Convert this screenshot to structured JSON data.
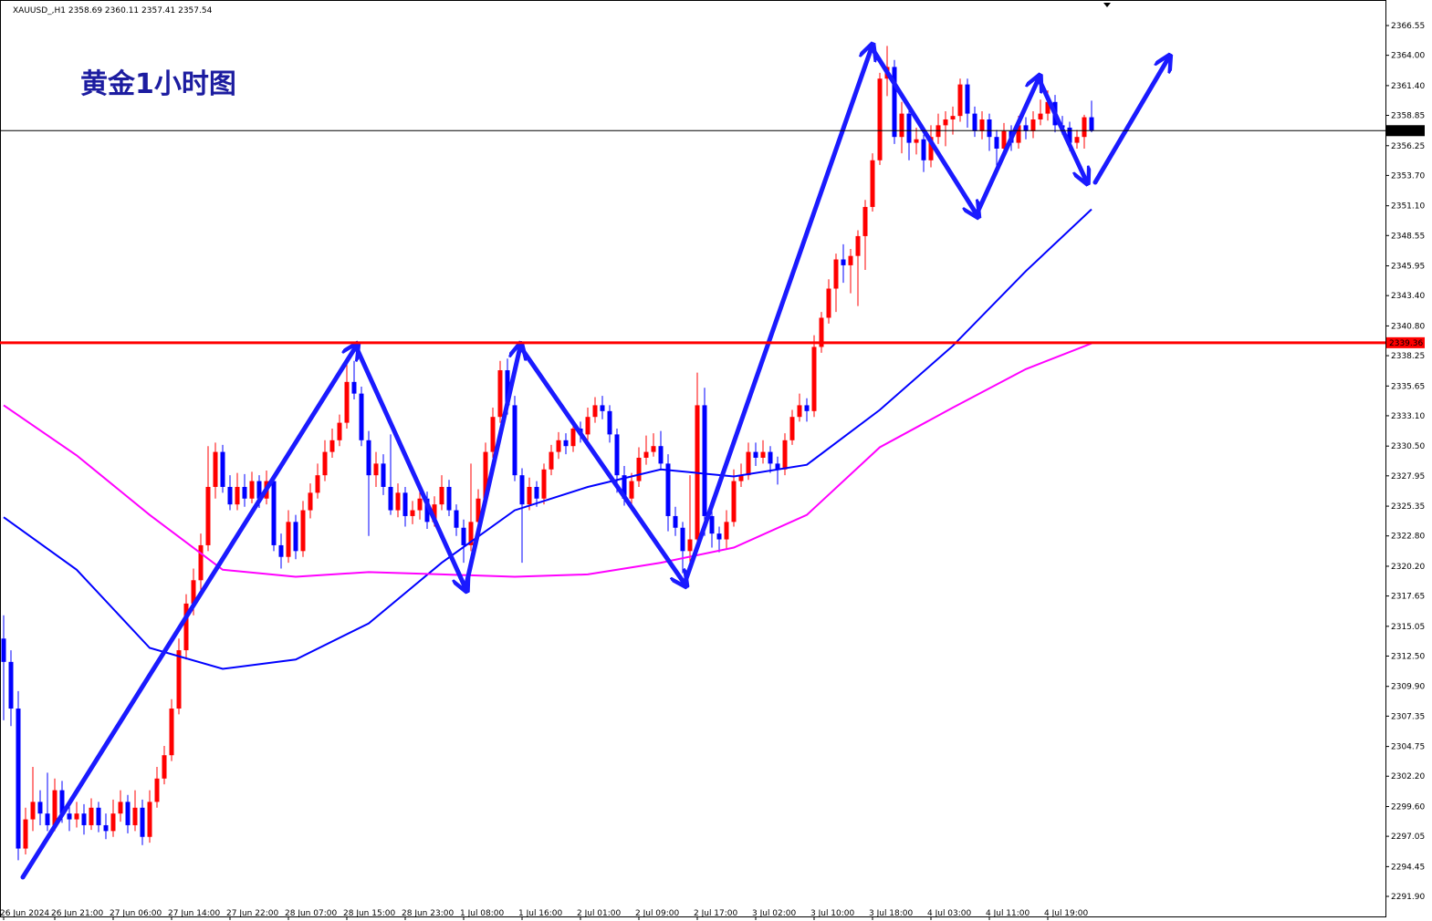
{
  "chart_data": {
    "type": "candlestick",
    "header": "XAUUSD_,H1  2358.69 2360.11 2357.41 2357.54",
    "title": "黄金1小时图",
    "up_color": "#ff0000",
    "down_color": "#0000ff",
    "xlim": [
      -0.5,
      189.25
    ],
    "ylim": [
      2290.18,
      2368.74
    ],
    "xticks": [
      {
        "value": 0,
        "label": "26 Jun 2024"
      },
      {
        "value": 7,
        "label": "26 Jun 21:00"
      },
      {
        "value": 15,
        "label": "27 Jun 06:00"
      },
      {
        "value": 23,
        "label": "27 Jun 14:00"
      },
      {
        "value": 31,
        "label": "27 Jun 22:00"
      },
      {
        "value": 39,
        "label": "28 Jun 07:00"
      },
      {
        "value": 47,
        "label": "28 Jun 15:00"
      },
      {
        "value": 55,
        "label": "28 Jun 23:00"
      },
      {
        "value": 63,
        "label": "1 Jul 08:00"
      },
      {
        "value": 71,
        "label": "1 Jul 16:00"
      },
      {
        "value": 79,
        "label": "2 Jul 01:00"
      },
      {
        "value": 87,
        "label": "2 Jul 09:00"
      },
      {
        "value": 95,
        "label": "2 Jul 17:00"
      },
      {
        "value": 103,
        "label": "3 Jul 02:00"
      },
      {
        "value": 111,
        "label": "3 Jul 10:00"
      },
      {
        "value": 119,
        "label": "3 Jul 18:00"
      },
      {
        "value": 127,
        "label": "4 Jul 03:00"
      },
      {
        "value": 135,
        "label": "4 Jul 11:00"
      },
      {
        "value": 143,
        "label": "4 Jul 19:00"
      }
    ],
    "yticks": [
      2366.55,
      {
        "value": 2364,
        "label": "2364.00"
      },
      {
        "value": 2361.4,
        "label": "2361.40"
      },
      2358.85,
      2356.25,
      {
        "value": 2353.7,
        "label": "2353.70"
      },
      {
        "value": 2351.1,
        "label": "2351.10"
      },
      2348.55,
      2345.95,
      {
        "value": 2343.4,
        "label": "2343.40"
      },
      {
        "value": 2340.8,
        "label": "2340.80"
      },
      2338.25,
      2335.65,
      {
        "value": 2333.1,
        "label": "2333.10"
      },
      {
        "value": 2330.5,
        "label": "2330.50"
      },
      2327.95,
      2325.35,
      {
        "value": 2322.8,
        "label": "2322.80"
      },
      {
        "value": 2320.2,
        "label": "2320.20"
      },
      2317.65,
      2315.05,
      {
        "value": 2312.5,
        "label": "2312.50"
      },
      {
        "value": 2309.9,
        "label": "2309.90"
      },
      2307.35,
      2304.75,
      {
        "value": 2302.2,
        "label": "2302.20"
      },
      {
        "value": 2299.6,
        "label": "2299.60"
      },
      2297.05,
      2294.45,
      {
        "value": 2291.9,
        "label": "2291.90"
      }
    ],
    "price_lines": [
      {
        "value": 2357.54,
        "color": "#000000"
      },
      {
        "value": 2339.36,
        "color": "#ff0000"
      }
    ],
    "candles": [
      [
        2314,
        2316,
        2307,
        2312
      ],
      [
        2312,
        2313,
        2306.5,
        2308
      ],
      [
        2308,
        2309.5,
        2295,
        2296
      ],
      [
        2296,
        2299.5,
        2295.5,
        2298.5
      ],
      [
        2298.5,
        2303,
        2297.5,
        2300
      ],
      [
        2300,
        2301,
        2298,
        2299
      ],
      [
        2299,
        2302.5,
        2297.5,
        2298
      ],
      [
        2298,
        2302,
        2297.5,
        2301
      ],
      [
        2301,
        2301.8,
        2298.2,
        2299
      ],
      [
        2299,
        2300,
        2297.5,
        2298.5
      ],
      [
        2298.5,
        2300,
        2297.8,
        2299
      ],
      [
        2299,
        2299.8,
        2297.2,
        2298
      ],
      [
        2298,
        2300.3,
        2297.6,
        2299.5
      ],
      [
        2299.5,
        2300,
        2297.4,
        2298
      ],
      [
        2298,
        2299,
        2296.8,
        2297.5
      ],
      [
        2297.5,
        2300.2,
        2297,
        2299
      ],
      [
        2299,
        2301,
        2298.3,
        2300
      ],
      [
        2300,
        2300.6,
        2297.3,
        2298
      ],
      [
        2298,
        2301,
        2297.5,
        2299.5
      ],
      [
        2299.5,
        2300.2,
        2296.3,
        2297
      ],
      [
        2297,
        2301,
        2296.5,
        2300
      ],
      [
        2300,
        2303,
        2299.5,
        2302
      ],
      [
        2302,
        2304.8,
        2301.5,
        2304
      ],
      [
        2304,
        2308.8,
        2303.5,
        2308
      ],
      [
        2308,
        2314,
        2307.5,
        2313
      ],
      [
        2313,
        2317.8,
        2312.2,
        2317
      ],
      [
        2317,
        2320,
        2316,
        2319
      ],
      [
        2319,
        2323,
        2318,
        2322
      ],
      [
        2322,
        2330.5,
        2321.5,
        2327
      ],
      [
        2327,
        2330.8,
        2326,
        2330
      ],
      [
        2330,
        2330.6,
        2326.5,
        2327
      ],
      [
        2327,
        2328,
        2325,
        2325.5
      ],
      [
        2325.5,
        2328.2,
        2325,
        2327
      ],
      [
        2327,
        2328.1,
        2325.3,
        2326
      ],
      [
        2326,
        2328.3,
        2325.6,
        2327.5
      ],
      [
        2327.5,
        2328,
        2325.2,
        2326
      ],
      [
        2326,
        2328.4,
        2325.5,
        2327.5
      ],
      [
        2327.5,
        2328,
        2321.5,
        2322
      ],
      [
        2322,
        2323,
        2320,
        2321
      ],
      [
        2321,
        2325,
        2320.5,
        2324
      ],
      [
        2324,
        2324.6,
        2320.8,
        2321.5
      ],
      [
        2321.5,
        2325.8,
        2321,
        2325
      ],
      [
        2325,
        2327.3,
        2324.3,
        2326.5
      ],
      [
        2326.5,
        2329,
        2326,
        2328
      ],
      [
        2328,
        2331,
        2327.5,
        2330
      ],
      [
        2330,
        2332,
        2329.5,
        2331
      ],
      [
        2331,
        2333.2,
        2330.5,
        2332.5
      ],
      [
        2332.5,
        2337.5,
        2332,
        2336
      ],
      [
        2336,
        2337.8,
        2334.5,
        2335
      ],
      [
        2335,
        2335.6,
        2330.5,
        2331
      ],
      [
        2331,
        2331.8,
        2322.8,
        2328
      ],
      [
        2328,
        2330,
        2327,
        2329
      ],
      [
        2329,
        2329.8,
        2326.3,
        2327
      ],
      [
        2327,
        2331.5,
        2324.6,
        2325
      ],
      [
        2325,
        2327.3,
        2324.4,
        2326.5
      ],
      [
        2326.5,
        2327,
        2323.6,
        2324.5
      ],
      [
        2324.5,
        2325.8,
        2323.8,
        2325
      ],
      [
        2325,
        2326.7,
        2324.2,
        2326
      ],
      [
        2326,
        2326.6,
        2323.4,
        2324
      ],
      [
        2324,
        2326.2,
        2323.6,
        2325.5
      ],
      [
        2325.5,
        2328,
        2325,
        2327
      ],
      [
        2327,
        2327.6,
        2324.5,
        2325
      ],
      [
        2325,
        2325.5,
        2322.8,
        2323.5
      ],
      [
        2323.5,
        2324.2,
        2320.5,
        2322
      ],
      [
        2322,
        2329,
        2321.5,
        2324
      ],
      [
        2324,
        2326.8,
        2323.5,
        2326
      ],
      [
        2326,
        2330.8,
        2325.5,
        2330
      ],
      [
        2330,
        2333.8,
        2329.5,
        2333
      ],
      [
        2333,
        2337.8,
        2332.5,
        2337
      ],
      [
        2337,
        2338,
        2333.2,
        2334
      ],
      [
        2334,
        2334.8,
        2327.5,
        2328
      ],
      [
        2328,
        2328.6,
        2320.5,
        2325.5
      ],
      [
        2325.5,
        2327.8,
        2325,
        2327
      ],
      [
        2327,
        2327.5,
        2325.3,
        2326
      ],
      [
        2326,
        2329,
        2325.5,
        2328.5
      ],
      [
        2328.5,
        2330.6,
        2328,
        2330
      ],
      [
        2330,
        2331.7,
        2329.4,
        2331
      ],
      [
        2331,
        2331.6,
        2329.8,
        2330.5
      ],
      [
        2330.5,
        2332.8,
        2330,
        2332
      ],
      [
        2332,
        2332.6,
        2330.8,
        2331.5
      ],
      [
        2331.5,
        2333.8,
        2331,
        2333
      ],
      [
        2333,
        2334.7,
        2332.5,
        2334
      ],
      [
        2334,
        2334.8,
        2332.8,
        2333.5
      ],
      [
        2333.5,
        2334,
        2330.8,
        2331.5
      ],
      [
        2331.5,
        2332,
        2326.5,
        2328
      ],
      [
        2328,
        2328.8,
        2325.4,
        2326
      ],
      [
        2326,
        2328.2,
        2325.4,
        2327.5
      ],
      [
        2327.5,
        2330.4,
        2327,
        2329.5
      ],
      [
        2329.5,
        2331.4,
        2328.9,
        2330
      ],
      [
        2330,
        2331.6,
        2329.6,
        2330.5
      ],
      [
        2330.5,
        2331.8,
        2328.4,
        2329
      ],
      [
        2329,
        2329.8,
        2323.2,
        2324.5
      ],
      [
        2324.5,
        2325.3,
        2322.8,
        2323.5
      ],
      [
        2323.5,
        2324,
        2319.6,
        2321.5
      ],
      [
        2321.5,
        2328,
        2320,
        2322.5
      ],
      [
        2322.5,
        2336.8,
        2322,
        2334
      ],
      [
        2334,
        2335.5,
        2322.8,
        2324.5
      ],
      [
        2324.5,
        2325.2,
        2321.8,
        2323
      ],
      [
        2323,
        2323.6,
        2321.4,
        2322.5
      ],
      [
        2322.5,
        2325,
        2321.6,
        2324
      ],
      [
        2324,
        2328.5,
        2323.6,
        2327.5
      ],
      [
        2327.5,
        2329,
        2327,
        2328
      ],
      [
        2328,
        2330.8,
        2327.6,
        2330
      ],
      [
        2330,
        2330.8,
        2328.8,
        2329.5
      ],
      [
        2329.5,
        2331,
        2329,
        2330
      ],
      [
        2330,
        2330.5,
        2328.2,
        2329
      ],
      [
        2329,
        2329.6,
        2327.2,
        2328.5
      ],
      [
        2328.5,
        2331.6,
        2328,
        2331
      ],
      [
        2331,
        2333.6,
        2330.6,
        2333
      ],
      [
        2333,
        2335,
        2332.6,
        2334
      ],
      [
        2334,
        2334.6,
        2332.6,
        2333.5
      ],
      [
        2333.5,
        2340,
        2333,
        2339
      ],
      [
        2339,
        2342,
        2338.5,
        2341.5
      ],
      [
        2341.5,
        2344.8,
        2341,
        2344
      ],
      [
        2344,
        2347,
        2342,
        2346.5
      ],
      [
        2346.5,
        2347.8,
        2344.5,
        2346
      ],
      [
        2346,
        2347.4,
        2343.6,
        2346.8
      ],
      [
        2346.8,
        2349,
        2342.5,
        2348.5
      ],
      [
        2348.5,
        2351.6,
        2345.6,
        2351
      ],
      [
        2351,
        2355.6,
        2350.6,
        2355
      ],
      [
        2355,
        2362.5,
        2354.6,
        2362
      ],
      [
        2362,
        2364.8,
        2360.5,
        2363
      ],
      [
        2363,
        2363.6,
        2356.4,
        2357
      ],
      [
        2357,
        2360,
        2355.6,
        2359
      ],
      [
        2359,
        2359.6,
        2355,
        2356.5
      ],
      [
        2356.5,
        2357.8,
        2355.5,
        2356.8
      ],
      [
        2356.8,
        2357.2,
        2354,
        2355
      ],
      [
        2355,
        2358,
        2354.4,
        2357
      ],
      [
        2357,
        2359,
        2356.4,
        2358
      ],
      [
        2358,
        2359.2,
        2356.2,
        2358.5
      ],
      [
        2358.5,
        2359.6,
        2357.2,
        2358.8
      ],
      [
        2358.8,
        2362,
        2358.3,
        2361.5
      ],
      [
        2361.5,
        2362,
        2357.8,
        2359
      ],
      [
        2359,
        2359.6,
        2357,
        2357.5
      ],
      [
        2357.5,
        2359.2,
        2356.8,
        2358.5
      ],
      [
        2358.5,
        2359,
        2355.8,
        2357
      ],
      [
        2357,
        2357.6,
        2353.8,
        2356
      ],
      [
        2356,
        2358.2,
        2355.5,
        2357.5
      ],
      [
        2357.5,
        2358,
        2355.8,
        2356.5
      ],
      [
        2356.5,
        2358.8,
        2356,
        2358
      ],
      [
        2358,
        2358.7,
        2356.8,
        2357.5
      ],
      [
        2357.5,
        2359.2,
        2356.9,
        2358.5
      ],
      [
        2358.5,
        2360.2,
        2358,
        2359
      ],
      [
        2359,
        2361,
        2358.4,
        2360
      ],
      [
        2360,
        2360.6,
        2357.4,
        2358
      ],
      [
        2358,
        2358.8,
        2357.2,
        2357.8
      ],
      [
        2357.8,
        2358.3,
        2355.8,
        2356.5
      ],
      [
        2356.5,
        2357.6,
        2356,
        2357
      ],
      [
        2357,
        2358.9,
        2356,
        2358.69
      ],
      [
        2358.69,
        2360.11,
        2357.41,
        2357.54
      ]
    ],
    "series": [
      {
        "color": "#0000ff",
        "x": [
          0,
          10,
          20,
          30,
          40,
          50,
          60,
          70,
          80,
          90,
          100,
          110,
          120,
          130,
          140,
          149
        ],
        "values": [
          2324.4,
          2319.9,
          2313.2,
          2311.4,
          2312.2,
          2315.3,
          2320.5,
          2325.0,
          2327.0,
          2328.5,
          2327.9,
          2328.9,
          2333.6,
          2339.1,
          2345.5,
          2350.8
        ]
      },
      {
        "color": "#ff00ff",
        "x": [
          0,
          10,
          20,
          30,
          40,
          50,
          60,
          70,
          80,
          90,
          100,
          110,
          120,
          130,
          140,
          149
        ],
        "values": [
          2334.0,
          2329.7,
          2324.6,
          2319.9,
          2319.3,
          2319.7,
          2319.5,
          2319.3,
          2319.5,
          2320.5,
          2321.8,
          2324.6,
          2330.4,
          2333.8,
          2337.1,
          2339.3
        ]
      }
    ]
  }
}
